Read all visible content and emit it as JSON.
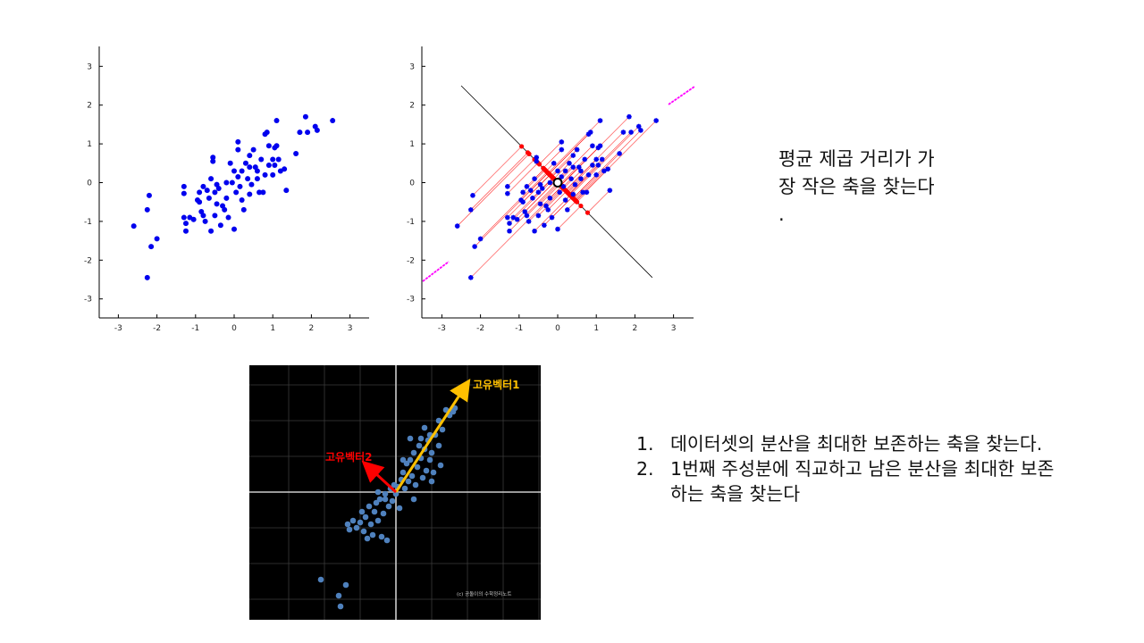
{
  "colors": {
    "points": "#0000ee",
    "projection_lines": "#ff0000",
    "projected_points": "#ff0000",
    "axis_line": "#000000",
    "side_projection": "#ff00ff",
    "dark_bg": "#000000",
    "dark_points": "#4f81bd",
    "eigvec1": "#ffc000",
    "eigvec2": "#ff0000",
    "dark_axes": "#cccccc"
  },
  "chart_data": [
    {
      "type": "scatter",
      "xlim": [
        -3.5,
        3.5
      ],
      "ylim": [
        -3.5,
        3.5
      ],
      "xticks": [
        "-3",
        "-2",
        "-1",
        "0",
        "1",
        "2",
        "3"
      ],
      "yticks": [
        "3",
        "2",
        "1",
        "0",
        "-1",
        "-2",
        "-3"
      ],
      "grid": false,
      "points": [
        [
          -2.25,
          -2.45
        ],
        [
          -2.2,
          -0.33
        ],
        [
          -2.25,
          -0.7
        ],
        [
          -2.6,
          -1.12
        ],
        [
          -2.15,
          -1.65
        ],
        [
          -2.0,
          -1.45
        ],
        [
          -1.3,
          -0.1
        ],
        [
          -1.3,
          -0.28
        ],
        [
          -1.3,
          -0.9
        ],
        [
          -1.25,
          -1.25
        ],
        [
          -1.25,
          -1.05
        ],
        [
          -1.15,
          -0.9
        ],
        [
          -1.05,
          -0.95
        ],
        [
          -0.95,
          -0.45
        ],
        [
          -0.9,
          -0.25
        ],
        [
          -0.85,
          -0.75
        ],
        [
          -0.8,
          -0.85
        ],
        [
          -0.8,
          -0.1
        ],
        [
          -0.75,
          -1.0
        ],
        [
          -0.7,
          -0.2
        ],
        [
          -0.65,
          -0.4
        ],
        [
          -0.6,
          -1.25
        ],
        [
          -0.6,
          0.1
        ],
        [
          -0.55,
          0.55
        ],
        [
          -0.55,
          0.65
        ],
        [
          -0.5,
          -0.85
        ],
        [
          -0.5,
          -0.25
        ],
        [
          -0.45,
          -0.55
        ],
        [
          -0.45,
          -0.05
        ],
        [
          -0.4,
          -0.15
        ],
        [
          -0.35,
          -1.1
        ],
        [
          -0.3,
          -0.6
        ],
        [
          -0.25,
          -0.7
        ],
        [
          -0.2,
          -0.4
        ],
        [
          -0.15,
          -0.9
        ],
        [
          -0.1,
          0.5
        ],
        [
          -0.05,
          0.0
        ],
        [
          0.0,
          -1.2
        ],
        [
          0.0,
          0.3
        ],
        [
          0.05,
          -0.25
        ],
        [
          0.1,
          0.15
        ],
        [
          0.1,
          0.85
        ],
        [
          0.1,
          1.05
        ],
        [
          0.15,
          -0.1
        ],
        [
          0.2,
          0.3
        ],
        [
          0.2,
          -0.45
        ],
        [
          0.25,
          -0.7
        ],
        [
          0.3,
          0.5
        ],
        [
          0.35,
          0.1
        ],
        [
          0.4,
          0.7
        ],
        [
          0.4,
          -0.3
        ],
        [
          0.45,
          -0.05
        ],
        [
          0.5,
          0.85
        ],
        [
          0.55,
          0.4
        ],
        [
          0.6,
          0.1
        ],
        [
          0.65,
          -0.25
        ],
        [
          0.7,
          0.6
        ],
        [
          0.75,
          -0.25
        ],
        [
          0.8,
          0.2
        ],
        [
          0.8,
          1.25
        ],
        [
          0.85,
          1.3
        ],
        [
          0.9,
          0.95
        ],
        [
          0.9,
          0.45
        ],
        [
          1.0,
          0.2
        ],
        [
          1.0,
          0.6
        ],
        [
          1.05,
          0.45
        ],
        [
          1.05,
          0.9
        ],
        [
          1.1,
          0.95
        ],
        [
          1.15,
          0.6
        ],
        [
          1.2,
          0.3
        ],
        [
          1.3,
          0.35
        ],
        [
          1.35,
          -0.2
        ],
        [
          1.1,
          1.6
        ],
        [
          1.6,
          0.75
        ],
        [
          1.7,
          1.3
        ],
        [
          1.85,
          1.7
        ],
        [
          1.9,
          1.3
        ],
        [
          2.1,
          1.45
        ],
        [
          2.15,
          1.35
        ],
        [
          2.55,
          1.6
        ],
        [
          -0.2,
          0.0
        ],
        [
          -0.9,
          -0.5
        ],
        [
          0.6,
          0.3
        ],
        [
          0.4,
          0.4
        ]
      ]
    },
    {
      "type": "scatter",
      "xlim": [
        -3.5,
        3.5
      ],
      "ylim": [
        -3.5,
        3.5
      ],
      "xticks": [
        "-3",
        "-2",
        "-1",
        "0",
        "1",
        "2",
        "3"
      ],
      "yticks": [
        "3",
        "2",
        "1",
        "0",
        "-1",
        "-2",
        "-3"
      ],
      "grid": false,
      "center": [
        0,
        0
      ],
      "axis_direction": [
        1,
        -1
      ],
      "points": [
        [
          -2.25,
          -2.45
        ],
        [
          -2.2,
          -0.33
        ],
        [
          -2.25,
          -0.7
        ],
        [
          -2.6,
          -1.12
        ],
        [
          -2.15,
          -1.65
        ],
        [
          -2.0,
          -1.45
        ],
        [
          -1.3,
          -0.1
        ],
        [
          -1.3,
          -0.28
        ],
        [
          -1.3,
          -0.9
        ],
        [
          -1.25,
          -1.25
        ],
        [
          -1.25,
          -1.05
        ],
        [
          -1.15,
          -0.9
        ],
        [
          -1.05,
          -0.95
        ],
        [
          -0.95,
          -0.45
        ],
        [
          -0.9,
          -0.25
        ],
        [
          -0.85,
          -0.75
        ],
        [
          -0.8,
          -0.85
        ],
        [
          -0.8,
          -0.1
        ],
        [
          -0.75,
          -1.0
        ],
        [
          -0.7,
          -0.2
        ],
        [
          -0.65,
          -0.4
        ],
        [
          -0.6,
          -1.25
        ],
        [
          -0.6,
          0.1
        ],
        [
          -0.55,
          0.55
        ],
        [
          -0.55,
          0.65
        ],
        [
          -0.5,
          -0.85
        ],
        [
          -0.5,
          -0.25
        ],
        [
          -0.45,
          -0.55
        ],
        [
          -0.45,
          -0.05
        ],
        [
          -0.4,
          -0.15
        ],
        [
          -0.35,
          -1.1
        ],
        [
          -0.3,
          -0.6
        ],
        [
          -0.25,
          -0.7
        ],
        [
          -0.2,
          -0.4
        ],
        [
          -0.15,
          -0.9
        ],
        [
          -0.1,
          0.5
        ],
        [
          -0.05,
          0.0
        ],
        [
          0.0,
          -1.2
        ],
        [
          0.0,
          0.3
        ],
        [
          0.05,
          -0.25
        ],
        [
          0.1,
          0.15
        ],
        [
          0.1,
          0.85
        ],
        [
          0.1,
          1.05
        ],
        [
          0.15,
          -0.1
        ],
        [
          0.2,
          0.3
        ],
        [
          0.2,
          -0.45
        ],
        [
          0.25,
          -0.7
        ],
        [
          0.3,
          0.5
        ],
        [
          0.35,
          0.1
        ],
        [
          0.4,
          0.7
        ],
        [
          0.4,
          -0.3
        ],
        [
          0.45,
          -0.05
        ],
        [
          0.5,
          0.85
        ],
        [
          0.55,
          0.4
        ],
        [
          0.6,
          0.1
        ],
        [
          0.65,
          -0.25
        ],
        [
          0.7,
          0.6
        ],
        [
          0.75,
          -0.25
        ],
        [
          0.8,
          0.2
        ],
        [
          0.8,
          1.25
        ],
        [
          0.85,
          1.3
        ],
        [
          0.9,
          0.95
        ],
        [
          0.9,
          0.45
        ],
        [
          1.0,
          0.2
        ],
        [
          1.0,
          0.6
        ],
        [
          1.05,
          0.45
        ],
        [
          1.05,
          0.9
        ],
        [
          1.1,
          0.95
        ],
        [
          1.15,
          0.6
        ],
        [
          1.2,
          0.3
        ],
        [
          1.3,
          0.35
        ],
        [
          1.35,
          -0.2
        ],
        [
          1.1,
          1.6
        ],
        [
          1.6,
          0.75
        ],
        [
          1.7,
          1.3
        ],
        [
          1.85,
          1.7
        ],
        [
          1.9,
          1.3
        ],
        [
          2.1,
          1.45
        ],
        [
          2.15,
          1.35
        ],
        [
          2.55,
          1.6
        ],
        [
          -0.2,
          0.0
        ],
        [
          -0.9,
          -0.5
        ],
        [
          0.6,
          0.3
        ],
        [
          0.4,
          0.4
        ]
      ]
    },
    {
      "type": "scatter",
      "xlim": [
        -4,
        4
      ],
      "ylim": [
        -3.5,
        3.5
      ],
      "grid": true,
      "eigenvectors": [
        {
          "label": "고유벡터1",
          "vector": [
            2.0,
            3.05
          ]
        },
        {
          "label": "고유벡터2",
          "vector": [
            -0.85,
            0.78
          ]
        }
      ],
      "watermark": "(c) 공돌이의 수학정리노트",
      "points": [
        [
          -2.1,
          -2.45
        ],
        [
          -1.6,
          -2.9
        ],
        [
          -1.55,
          -3.2
        ],
        [
          -1.4,
          -2.6
        ],
        [
          -1.35,
          -0.9
        ],
        [
          -1.3,
          -1.05
        ],
        [
          -1.2,
          -0.8
        ],
        [
          -1.1,
          -1.0
        ],
        [
          -1.0,
          -0.85
        ],
        [
          -0.95,
          -0.55
        ],
        [
          -0.9,
          -1.1
        ],
        [
          -0.85,
          -0.7
        ],
        [
          -0.8,
          -1.3
        ],
        [
          -0.75,
          -0.4
        ],
        [
          -0.7,
          -0.9
        ],
        [
          -0.65,
          -1.2
        ],
        [
          -0.6,
          -0.55
        ],
        [
          -0.55,
          -0.3
        ],
        [
          -0.5,
          -0.8
        ],
        [
          -0.45,
          -0.2
        ],
        [
          -0.4,
          -1.25
        ],
        [
          -0.35,
          -0.6
        ],
        [
          -0.3,
          -0.05
        ],
        [
          -0.25,
          -1.35
        ],
        [
          -0.2,
          -0.4
        ],
        [
          -0.15,
          0.1
        ],
        [
          -0.1,
          -0.25
        ],
        [
          -0.05,
          0.2
        ],
        [
          0.0,
          -0.05
        ],
        [
          0.05,
          0.15
        ],
        [
          0.1,
          -0.45
        ],
        [
          0.15,
          0.35
        ],
        [
          0.2,
          0.55
        ],
        [
          0.25,
          0.1
        ],
        [
          0.3,
          0.8
        ],
        [
          0.35,
          0.3
        ],
        [
          0.4,
          0.9
        ],
        [
          0.45,
          0.45
        ],
        [
          0.5,
          1.1
        ],
        [
          0.55,
          0.2
        ],
        [
          0.6,
          0.7
        ],
        [
          0.65,
          1.3
        ],
        [
          0.7,
          0.95
        ],
        [
          0.75,
          0.4
        ],
        [
          0.8,
          1.2
        ],
        [
          0.85,
          0.6
        ],
        [
          0.9,
          1.45
        ],
        [
          0.95,
          0.9
        ],
        [
          1.0,
          1.1
        ],
        [
          1.05,
          0.55
        ],
        [
          1.1,
          1.6
        ],
        [
          1.2,
          1.3
        ],
        [
          1.25,
          0.75
        ],
        [
          1.3,
          1.75
        ],
        [
          1.4,
          2.3
        ],
        [
          1.5,
          2.15
        ],
        [
          1.6,
          2.25
        ],
        [
          1.65,
          2.35
        ],
        [
          -0.5,
          0.0
        ],
        [
          0.4,
          1.5
        ],
        [
          0.8,
          1.8
        ],
        [
          0.95,
          1.6
        ],
        [
          1.0,
          0.3
        ],
        [
          0.2,
          0.9
        ],
        [
          -0.3,
          -0.2
        ],
        [
          0.5,
          -0.2
        ],
        [
          0.7,
          1.5
        ],
        [
          1.2,
          2.0
        ]
      ]
    }
  ],
  "note1": {
    "line1": "평균 제곱 거리가 가",
    "line2": "장 작은 축을 찾는다",
    "line3": "."
  },
  "list2": {
    "item1_num": "1.",
    "item1_text": "데이터셋의 분산을 최대한 보존하는 축을 찾는다.",
    "item2_num": "2.",
    "item2_text": "1번째 주성분에 직교하고 남은 분산을 최대한 보존하는 축을 찾는다"
  }
}
